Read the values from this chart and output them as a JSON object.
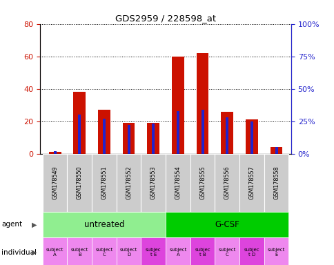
{
  "title": "GDS2959 / 228598_at",
  "samples": [
    "GSM178549",
    "GSM178550",
    "GSM178551",
    "GSM178552",
    "GSM178553",
    "GSM178554",
    "GSM178555",
    "GSM178556",
    "GSM178557",
    "GSM178558"
  ],
  "count": [
    1,
    38,
    27,
    19,
    19,
    60,
    62,
    26,
    21,
    4
  ],
  "percentile": [
    2,
    30,
    27,
    22,
    23,
    33,
    34,
    28,
    25,
    5
  ],
  "ylim_left": [
    0,
    80
  ],
  "ylim_right": [
    0,
    100
  ],
  "yticks_left": [
    0,
    20,
    40,
    60,
    80
  ],
  "yticks_right": [
    0,
    25,
    50,
    75,
    100
  ],
  "ytick_labels_right": [
    "0%",
    "25%",
    "50%",
    "75%",
    "100%"
  ],
  "agent_groups": [
    {
      "label": "untreated",
      "start": 0,
      "end": 5,
      "color": "#90ee90"
    },
    {
      "label": "G-CSF",
      "start": 5,
      "end": 10,
      "color": "#00cc00"
    }
  ],
  "individual_labels": [
    "subject\nA",
    "subject\nB",
    "subject\nC",
    "subject\nD",
    "subjec\nt E",
    "subject\nA",
    "subjec\nt B",
    "subject\nC",
    "subjec\nt D",
    "subject\nE"
  ],
  "individual_highlights": [
    4,
    6,
    8
  ],
  "indiv_bg_normal": "#ee88ee",
  "indiv_bg_highlight": "#dd44dd",
  "bar_color_count": "#cc1100",
  "bar_color_pct": "#2222cc",
  "bar_width": 0.5,
  "grid_color": "black",
  "grid_style": "dotted",
  "tick_color_left": "#cc1100",
  "tick_color_right": "#2222cc",
  "bg_color_label": "#cccccc",
  "fig_width": 4.85,
  "fig_height": 3.84,
  "dpi": 100
}
